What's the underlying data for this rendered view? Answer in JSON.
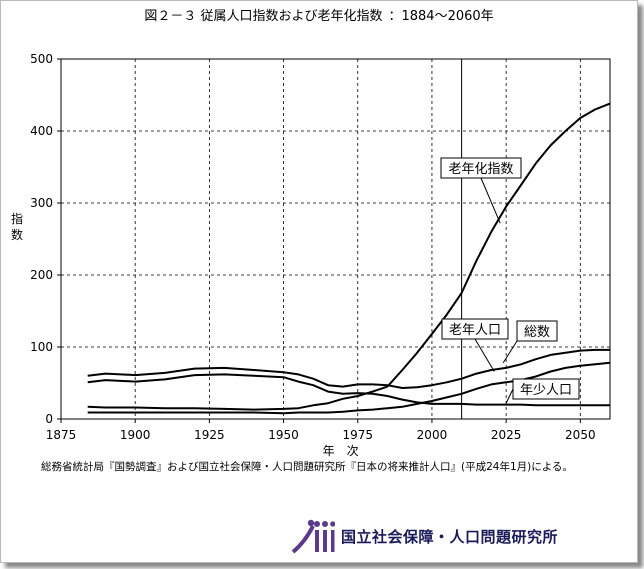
{
  "title": {
    "main": "図２－３ 従属人口指数および老年化指数",
    "range": "：1884～2060年"
  },
  "chart_data": {
    "type": "line",
    "xlabel": "年　次",
    "ylabel": "指数",
    "xlim": [
      1875,
      2060
    ],
    "ylim": [
      0,
      500
    ],
    "x_ticks": [
      1875,
      1900,
      1925,
      1950,
      1975,
      2000,
      2025,
      2050
    ],
    "y_ticks": [
      0,
      100,
      200,
      300,
      400,
      500
    ],
    "grid": true,
    "vertical_marker": 2010,
    "series": [
      {
        "name": "老年化指数",
        "x": [
          1884,
          1890,
          1900,
          1910,
          1920,
          1930,
          1940,
          1950,
          1955,
          1960,
          1965,
          1970,
          1975,
          1980,
          1985,
          1990,
          1995,
          2000,
          2005,
          2010,
          2015,
          2020,
          2025,
          2030,
          2035,
          2040,
          2045,
          2050,
          2055,
          2060
        ],
        "values": [
          17,
          16,
          16,
          15,
          15,
          14,
          13,
          14,
          15,
          19,
          22,
          28,
          32,
          38,
          45,
          68,
          92,
          118,
          145,
          175,
          220,
          260,
          295,
          325,
          355,
          380,
          400,
          418,
          430,
          438
        ]
      },
      {
        "name": "総数",
        "x": [
          1884,
          1890,
          1900,
          1910,
          1920,
          1930,
          1940,
          1950,
          1955,
          1960,
          1965,
          1970,
          1975,
          1980,
          1985,
          1990,
          1995,
          2000,
          2005,
          2010,
          2015,
          2020,
          2025,
          2030,
          2035,
          2040,
          2045,
          2050,
          2055,
          2060
        ],
        "values": [
          60,
          63,
          61,
          64,
          70,
          71,
          68,
          65,
          62,
          56,
          47,
          45,
          48,
          48,
          47,
          43,
          44,
          47,
          51,
          56,
          63,
          68,
          71,
          76,
          83,
          89,
          92,
          95,
          96,
          96
        ]
      },
      {
        "name": "老年人口",
        "x": [
          1884,
          1890,
          1900,
          1910,
          1920,
          1930,
          1940,
          1950,
          1955,
          1960,
          1965,
          1970,
          1975,
          1980,
          1985,
          1990,
          1995,
          2000,
          2005,
          2010,
          2015,
          2020,
          2025,
          2030,
          2035,
          2040,
          2045,
          2050,
          2055,
          2060
        ],
        "values": [
          9,
          9,
          9,
          9,
          9,
          9,
          9,
          8,
          9,
          9,
          9,
          10,
          12,
          13,
          15,
          17,
          21,
          25,
          30,
          35,
          42,
          48,
          51,
          54,
          59,
          66,
          71,
          74,
          76,
          78
        ]
      },
      {
        "name": "年少人口",
        "x": [
          1884,
          1890,
          1900,
          1910,
          1920,
          1930,
          1940,
          1950,
          1955,
          1960,
          1965,
          1970,
          1975,
          1980,
          1985,
          1990,
          1995,
          2000,
          2005,
          2010,
          2015,
          2020,
          2025,
          2030,
          2035,
          2040,
          2045,
          2050,
          2055,
          2060
        ],
        "values": [
          51,
          54,
          52,
          55,
          61,
          62,
          60,
          58,
          52,
          47,
          38,
          35,
          36,
          35,
          32,
          27,
          23,
          21,
          21,
          21,
          20,
          20,
          20,
          20,
          19,
          19,
          19,
          19,
          19,
          19
        ]
      }
    ],
    "annotations": [
      {
        "text": "老年化指数",
        "target_x": 2023,
        "target_y": 272
      },
      {
        "text": "総数",
        "target_x": 2024,
        "target_y": 78
      },
      {
        "text": "老年人口",
        "target_x": 2021,
        "target_y": 66
      },
      {
        "text": "年少人口",
        "target_x": 2025,
        "target_y": 22
      }
    ]
  },
  "source_note": "総務省統計局『国勢調査』および国立社会保障・人口問題研究所『日本の将来推計人口』(平成24年1月)による。",
  "logo": {
    "org_name": "国立社会保障・人口問題研究所",
    "mark_letters": "iii"
  }
}
